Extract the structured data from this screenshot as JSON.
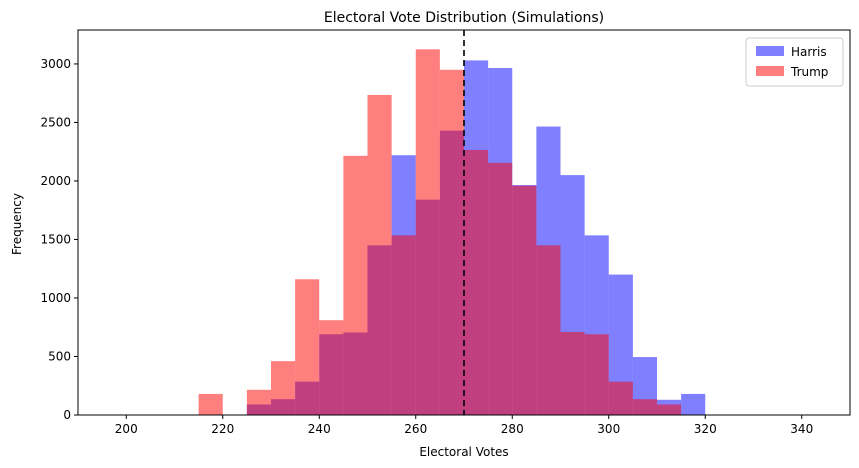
{
  "chart_data": {
    "type": "histogram",
    "title": "Electoral Vote Distribution (Simulations)",
    "xlabel": "Electoral Votes",
    "ylabel": "Frequency",
    "xlim": [
      190,
      350
    ],
    "ylim": [
      0,
      3290
    ],
    "xticks": [
      200,
      220,
      240,
      260,
      280,
      300,
      320,
      340
    ],
    "yticks": [
      0,
      500,
      1000,
      1500,
      2000,
      2500,
      3000
    ],
    "grid": false,
    "legend": "top-right",
    "bin_width": 5,
    "threshold_line": {
      "x": 270,
      "style": "dashed",
      "color": "#000000"
    },
    "series": [
      {
        "name": "Harris",
        "color": "#0000ff",
        "alpha": 0.5,
        "bins": [
          225,
          230,
          235,
          240,
          245,
          250,
          255,
          260,
          265,
          270,
          275,
          280,
          285,
          290,
          295,
          300,
          305,
          310,
          315
        ],
        "values": [
          90,
          135,
          285,
          690,
          705,
          1450,
          2220,
          1840,
          2430,
          3030,
          2965,
          1965,
          2465,
          2050,
          1535,
          1200,
          495,
          130,
          180
        ]
      },
      {
        "name": "Trump",
        "color": "#ff0000",
        "alpha": 0.5,
        "bins": [
          215,
          225,
          230,
          235,
          240,
          245,
          250,
          255,
          260,
          265,
          270,
          275,
          280,
          285,
          290,
          295,
          300,
          305,
          310
        ],
        "values": [
          180,
          215,
          460,
          1160,
          810,
          2215,
          2735,
          1535,
          3125,
          2950,
          2265,
          2155,
          1960,
          1450,
          710,
          690,
          285,
          135,
          90
        ]
      }
    ]
  }
}
